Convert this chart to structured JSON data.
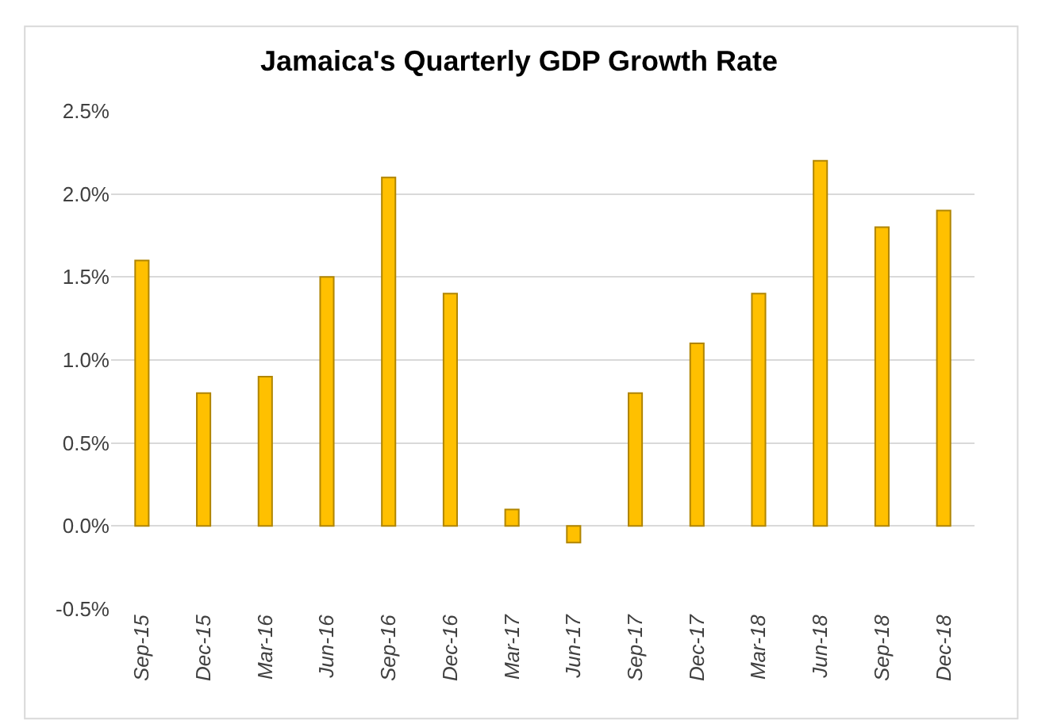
{
  "chart_data": {
    "type": "bar",
    "title": "Jamaica's Quarterly GDP Growth Rate",
    "categories": [
      "Sep-15",
      "Dec-15",
      "Mar-16",
      "Jun-16",
      "Sep-16",
      "Dec-16",
      "Mar-17",
      "Jun-17",
      "Sep-17",
      "Dec-17",
      "Mar-18",
      "Jun-18",
      "Sep-18",
      "Dec-18"
    ],
    "values": [
      1.6,
      0.8,
      0.9,
      1.5,
      2.1,
      1.4,
      0.1,
      -0.1,
      0.8,
      1.1,
      1.4,
      2.2,
      1.8,
      1.9
    ],
    "color": "#ffc000",
    "ylim": [
      -0.5,
      2.5
    ],
    "yticks": [
      {
        "value": -0.5,
        "label": "-0.5%"
      },
      {
        "value": 0,
        "label": "0.0%"
      },
      {
        "value": 0.5,
        "label": "0.5%"
      },
      {
        "value": 1,
        "label": "1.0%"
      },
      {
        "value": 1.5,
        "label": "1.5%"
      },
      {
        "value": 2,
        "label": "2.0%"
      },
      {
        "value": 2.5,
        "label": "2.5%"
      }
    ],
    "grid": "y"
  }
}
